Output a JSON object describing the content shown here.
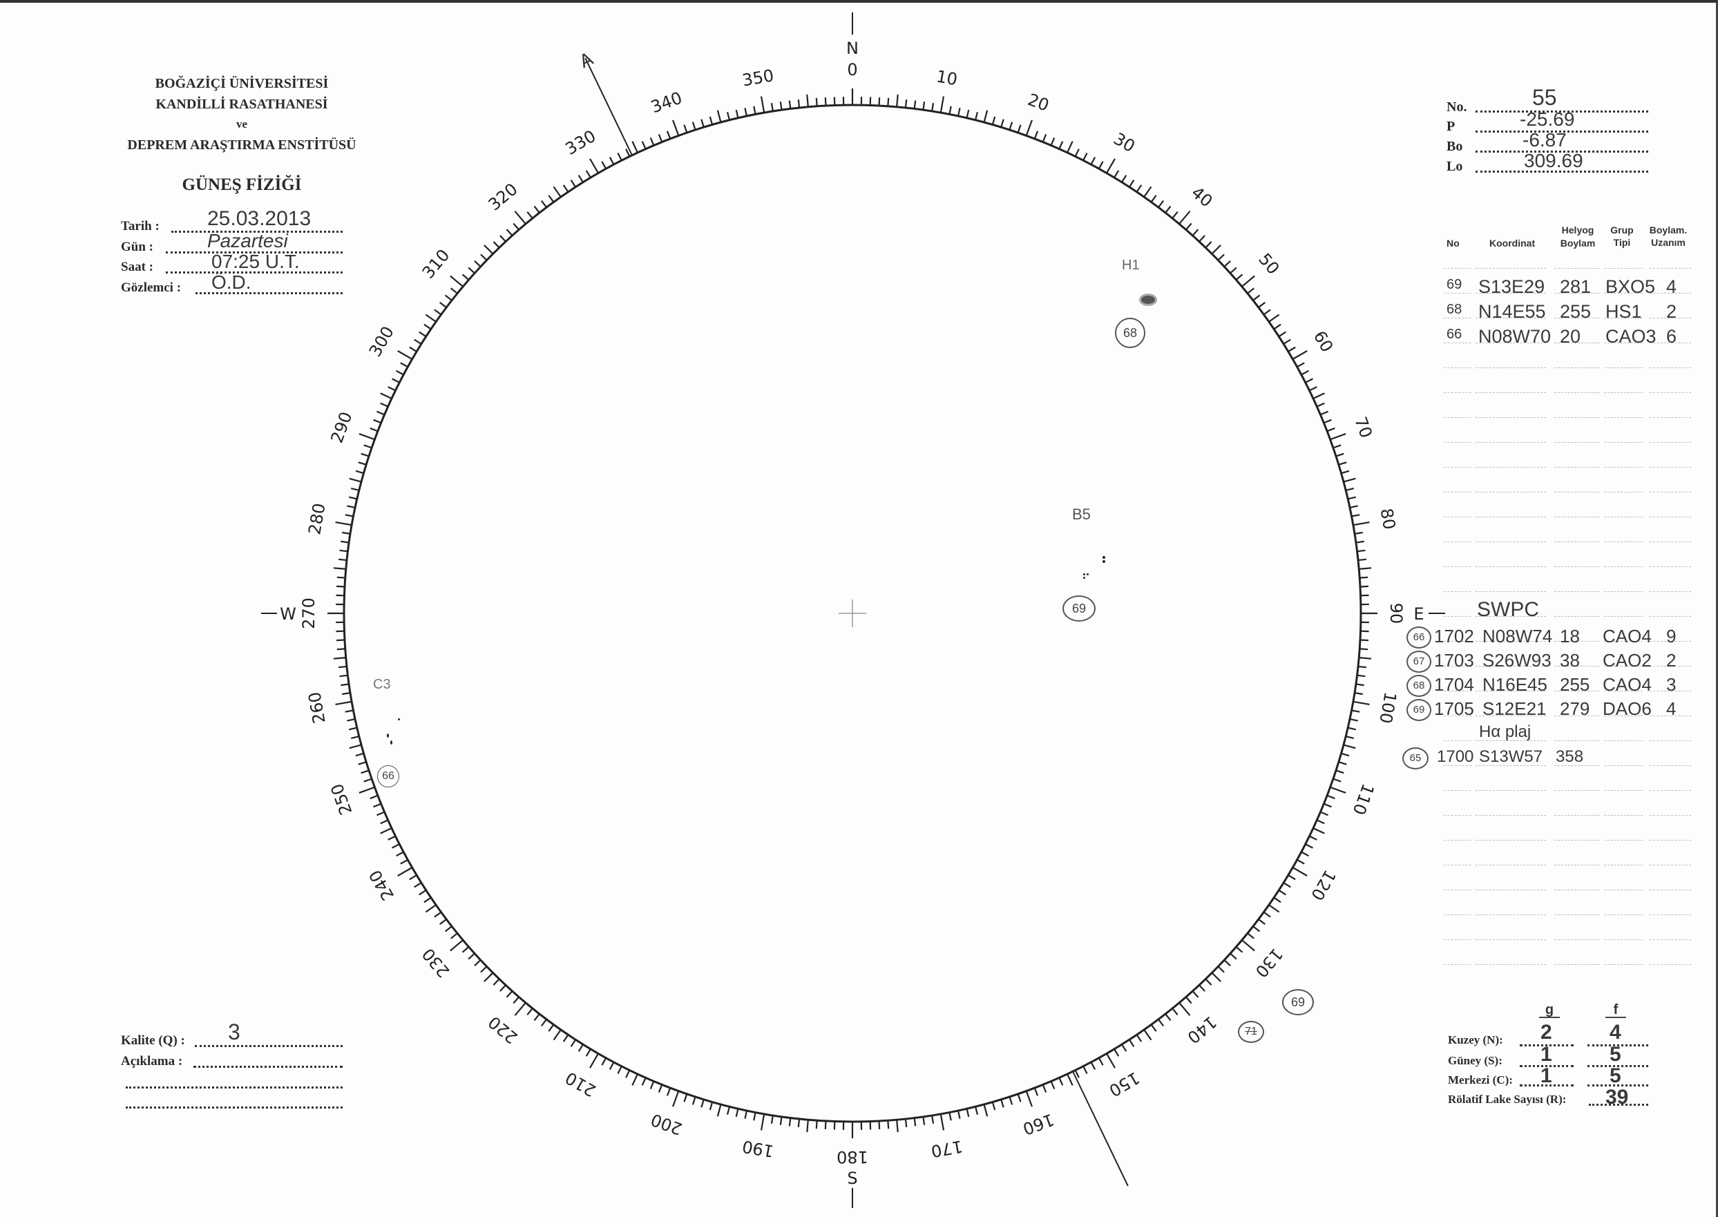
{
  "institution": {
    "line1": "BOĞAZİÇİ ÜNİVERSİTESİ",
    "line2": "KANDİLLİ RASATHANESİ",
    "line3": "ve",
    "line4": "DEPREM ARAŞTIRMA ENSTİTÜSÜ",
    "section": "GÜNEŞ FİZİĞİ"
  },
  "observation": {
    "date_label": "Tarih :",
    "date": "25.03.2013",
    "day_label": "Gün :",
    "day": "Pazartesi",
    "time_label": "Saat :",
    "time": "07:25 U.T.",
    "observer_label": "Gözlemci :",
    "observer": "Ö.D."
  },
  "parameters": {
    "no_label": "No.",
    "no": "55",
    "p_label": "P",
    "p": "-25.69",
    "bo_label": "Bo",
    "bo": "-6.87",
    "lo_label": "Lo",
    "lo": "309.69"
  },
  "table": {
    "headers": {
      "no": "No",
      "coord": "Koordinat",
      "helyog1": "Helyog",
      "helyog2": "Boylam",
      "grup1": "Grup",
      "grup2": "Tipi",
      "uzanim1": "Boylam.",
      "uzanim2": "Uzanım"
    },
    "rows": [
      {
        "no": "69",
        "coord": "S13E29",
        "helyog": "281",
        "type": "BXO5",
        "uzanim": "4"
      },
      {
        "no": "68",
        "coord": "N14E55",
        "helyog": "255",
        "type": "HS1",
        "uzanim": "2"
      },
      {
        "no": "66",
        "coord": "N08W70",
        "helyog": "20",
        "type": "CAO3",
        "uzanim": "6"
      }
    ],
    "swpc_title": "SWPC",
    "swpc_rows": [
      {
        "ref": "66",
        "noaa": "1702",
        "coord": "N08W74",
        "helyog": "18",
        "type": "CAO4",
        "uzanim": "9"
      },
      {
        "ref": "67",
        "noaa": "1703",
        "coord": "S26W93",
        "helyog": "38",
        "type": "CAO2",
        "uzanim": "2"
      },
      {
        "ref": "68",
        "noaa": "1704",
        "coord": "N16E45",
        "helyog": "255",
        "type": "CAO4",
        "uzanim": "3"
      },
      {
        "ref": "69",
        "noaa": "1705",
        "coord": "S12E21",
        "helyog": "279",
        "type": "DAO6",
        "uzanim": "4"
      }
    ],
    "plage_note": "Hα plaj",
    "plage_row": {
      "ref": "65",
      "noaa": "1700",
      "coord": "S13W57",
      "helyog": "358"
    }
  },
  "disk": {
    "compass": {
      "north": "N",
      "south": "S",
      "east": "E",
      "west": "W"
    },
    "degree_labels": [
      "0",
      "10",
      "20",
      "30",
      "40",
      "50",
      "60",
      "70",
      "80",
      "90",
      "100",
      "110",
      "120",
      "130",
      "140",
      "150",
      "160",
      "170",
      "180",
      "190",
      "200",
      "210",
      "220",
      "230",
      "240",
      "250",
      "260",
      "270",
      "280",
      "290",
      "300",
      "310",
      "320",
      "330",
      "340",
      "350"
    ],
    "axis_marker": "A",
    "groups": [
      {
        "label": "H1",
        "ref": "68"
      },
      {
        "label": "B5",
        "ref": "69"
      },
      {
        "label": "C3",
        "ref": "66"
      }
    ],
    "limb_refs": {
      "ref_a": "69",
      "ref_b_crossed": "71"
    }
  },
  "quality": {
    "label": "Kalite (Q) :",
    "value": "3",
    "comment_label": "Açıklama :"
  },
  "counts": {
    "g_header": "g",
    "f_header": "f",
    "north_label": "Kuzey (N):",
    "north_g": "2",
    "north_f": "4",
    "south_label": "Güney (S):",
    "south_g": "1",
    "south_f": "5",
    "center_label": "Merkezi (C):",
    "center_g": "1",
    "center_f": "5",
    "r_label": "Rölatif Lake Sayısı (R):",
    "r_value": "39"
  }
}
